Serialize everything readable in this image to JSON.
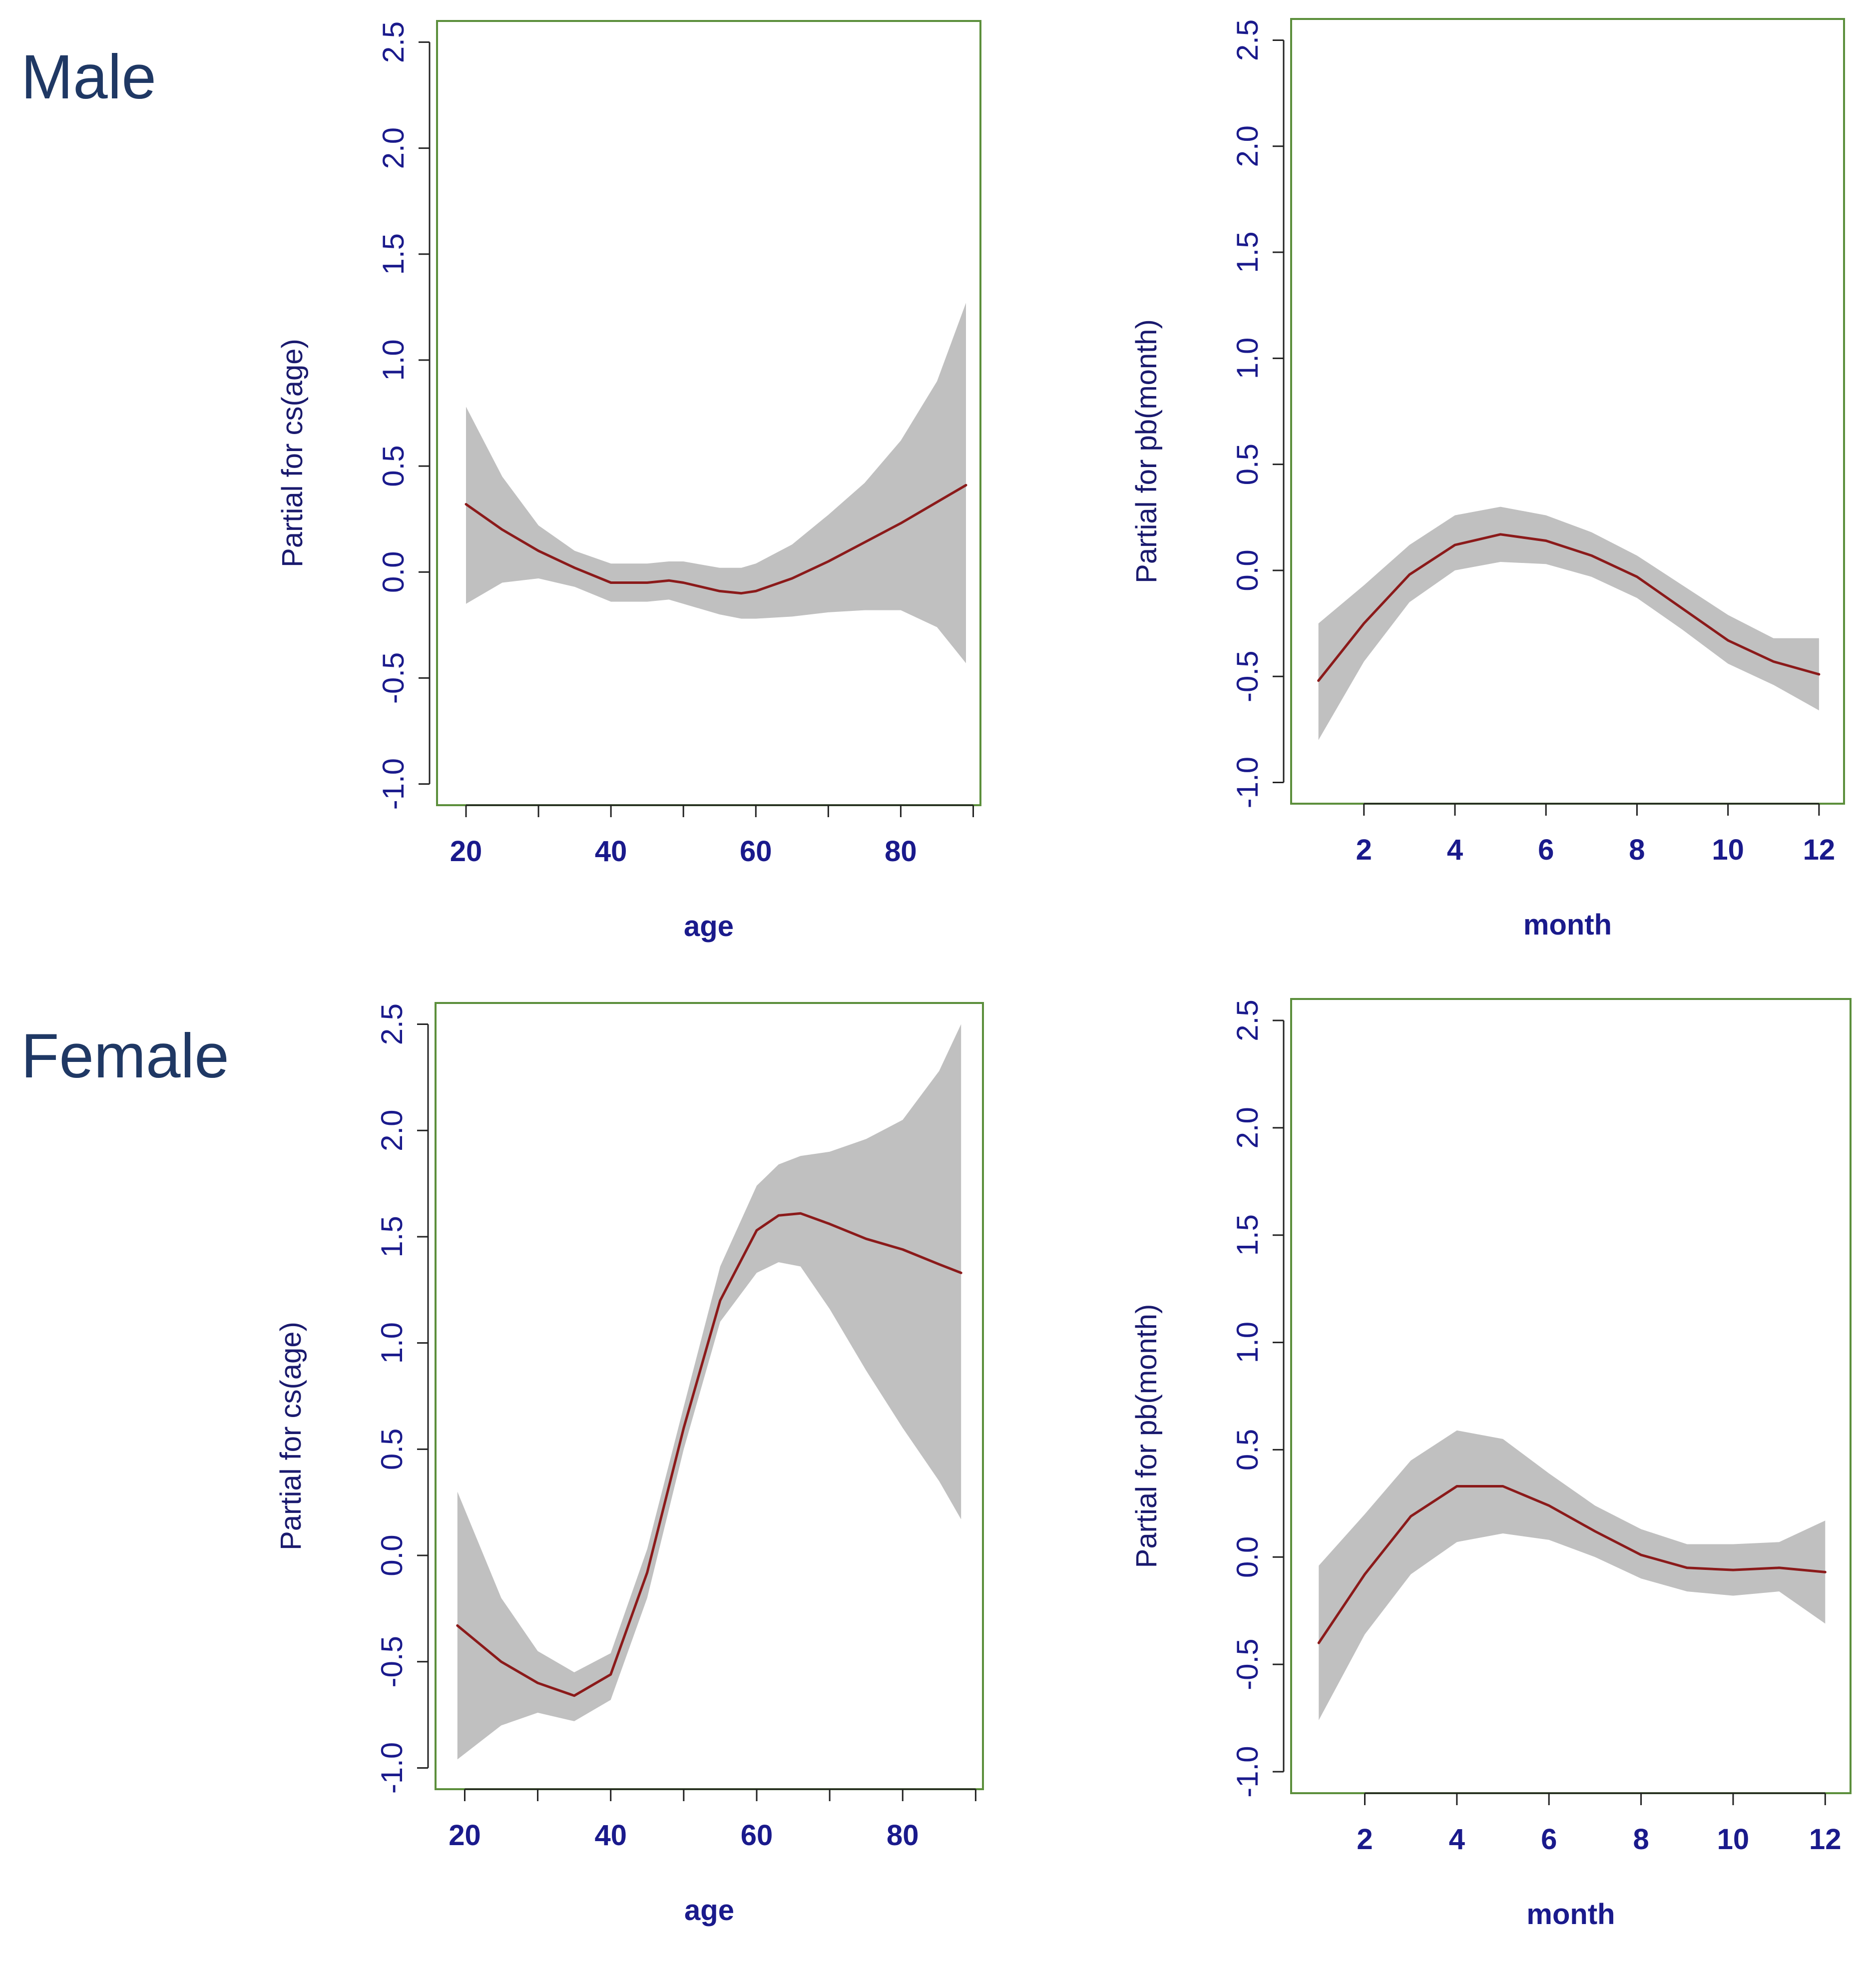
{
  "groups": {
    "male": "Male",
    "female": "Female"
  },
  "colors": {
    "frame": "#5c8f3c",
    "band": "#c0c0c0",
    "line": "#8b1a1a",
    "tick_text": "#1a1a8c",
    "axis_title_x": "#1a1a8c",
    "axis_title_y": "#1a1a6e",
    "group_label": "#1f3864"
  },
  "chart_data": [
    {
      "id": "male-age",
      "type": "line",
      "group": "Male",
      "xlabel": "age",
      "ylabel": "Partial for cs(age)",
      "xlim": [
        16,
        91
      ],
      "ylim": [
        -1.1,
        2.6
      ],
      "xticks": [
        20,
        30,
        40,
        50,
        60,
        70,
        80,
        90
      ],
      "xtick_labels": [
        "20",
        "",
        "40",
        "",
        "60",
        "",
        "80",
        ""
      ],
      "yticks": [
        -1.0,
        -0.5,
        0.0,
        0.5,
        1.0,
        1.5,
        2.0,
        2.5
      ],
      "ytick_labels": [
        "-1.0",
        "-0.5",
        "0.0",
        "0.5",
        "1.0",
        "1.5",
        "2.0",
        "2.5"
      ],
      "series": [
        {
          "name": "fit",
          "x": [
            20,
            25,
            30,
            35,
            40,
            45,
            48,
            50,
            55,
            58,
            60,
            65,
            70,
            75,
            80,
            85,
            89
          ],
          "y": [
            0.32,
            0.2,
            0.1,
            0.02,
            -0.05,
            -0.05,
            -0.04,
            -0.05,
            -0.09,
            -0.1,
            -0.09,
            -0.03,
            0.05,
            0.14,
            0.23,
            0.33,
            0.41
          ]
        }
      ],
      "band": {
        "x": [
          20,
          25,
          30,
          35,
          40,
          45,
          48,
          50,
          55,
          58,
          60,
          65,
          70,
          75,
          80,
          85,
          89
        ],
        "upper": [
          0.78,
          0.45,
          0.22,
          0.1,
          0.04,
          0.04,
          0.05,
          0.05,
          0.02,
          0.02,
          0.04,
          0.13,
          0.27,
          0.42,
          0.62,
          0.9,
          1.27
        ],
        "lower": [
          -0.15,
          -0.05,
          -0.03,
          -0.07,
          -0.14,
          -0.14,
          -0.13,
          -0.15,
          -0.2,
          -0.22,
          -0.22,
          -0.21,
          -0.19,
          -0.18,
          -0.18,
          -0.26,
          -0.43
        ]
      }
    },
    {
      "id": "male-month",
      "type": "line",
      "group": "Male",
      "xlabel": "month",
      "ylabel": "Partial for pb(month)",
      "xlim": [
        0.4,
        12.55
      ],
      "ylim": [
        -1.1,
        2.6
      ],
      "xticks": [
        2,
        4,
        6,
        8,
        10,
        12
      ],
      "xtick_labels": [
        "2",
        "4",
        "6",
        "8",
        "10",
        "12"
      ],
      "yticks": [
        -1.0,
        -0.5,
        0.0,
        0.5,
        1.0,
        1.5,
        2.0,
        2.5
      ],
      "ytick_labels": [
        "-1.0",
        "-0.5",
        "0.0",
        "0.5",
        "1.0",
        "1.5",
        "2.0",
        "2.5"
      ],
      "series": [
        {
          "name": "fit",
          "x": [
            1,
            2,
            3,
            4,
            5,
            6,
            7,
            8,
            9,
            10,
            11,
            12
          ],
          "y": [
            -0.52,
            -0.25,
            -0.02,
            0.12,
            0.17,
            0.14,
            0.07,
            -0.03,
            -0.18,
            -0.33,
            -0.43,
            -0.49
          ]
        }
      ],
      "band": {
        "x": [
          1,
          2,
          3,
          4,
          5,
          6,
          7,
          8,
          9,
          10,
          11,
          12
        ],
        "upper": [
          -0.25,
          -0.07,
          0.12,
          0.26,
          0.3,
          0.26,
          0.18,
          0.07,
          -0.07,
          -0.21,
          -0.32,
          -0.32
        ],
        "lower": [
          -0.8,
          -0.43,
          -0.15,
          0.0,
          0.04,
          0.03,
          -0.03,
          -0.13,
          -0.28,
          -0.44,
          -0.54,
          -0.66
        ]
      }
    },
    {
      "id": "female-age",
      "type": "line",
      "group": "Female",
      "xlabel": "age",
      "ylabel": "Partial for cs(age)",
      "xlim": [
        16,
        91
      ],
      "ylim": [
        -1.1,
        2.6
      ],
      "xticks": [
        20,
        30,
        40,
        50,
        60,
        70,
        80,
        90
      ],
      "xtick_labels": [
        "20",
        "",
        "40",
        "",
        "60",
        "",
        "80",
        ""
      ],
      "yticks": [
        -1.0,
        -0.5,
        0.0,
        0.5,
        1.0,
        1.5,
        2.0,
        2.5
      ],
      "ytick_labels": [
        "-1.0",
        "-0.5",
        "0.0",
        "0.5",
        "1.0",
        "1.5",
        "2.0",
        "2.5"
      ],
      "series": [
        {
          "name": "fit",
          "x": [
            19,
            25,
            30,
            35,
            40,
            45,
            50,
            55,
            60,
            63,
            66,
            70,
            75,
            80,
            85,
            88
          ],
          "y": [
            -0.33,
            -0.5,
            -0.6,
            -0.66,
            -0.56,
            -0.08,
            0.6,
            1.2,
            1.53,
            1.6,
            1.61,
            1.56,
            1.49,
            1.44,
            1.37,
            1.33
          ]
        }
      ],
      "band": {
        "x": [
          19,
          25,
          30,
          35,
          40,
          45,
          50,
          55,
          60,
          63,
          66,
          70,
          75,
          80,
          85,
          88
        ],
        "upper": [
          0.3,
          -0.2,
          -0.45,
          -0.55,
          -0.46,
          0.03,
          0.7,
          1.36,
          1.74,
          1.84,
          1.88,
          1.9,
          1.96,
          2.05,
          2.28,
          2.5
        ],
        "lower": [
          -0.96,
          -0.8,
          -0.74,
          -0.78,
          -0.68,
          -0.2,
          0.5,
          1.1,
          1.33,
          1.38,
          1.36,
          1.16,
          0.87,
          0.6,
          0.35,
          0.17
        ]
      }
    },
    {
      "id": "female-month",
      "type": "line",
      "group": "Female",
      "xlabel": "month",
      "ylabel": "Partial for pb(month)",
      "xlim": [
        0.4,
        12.55
      ],
      "ylim": [
        -1.1,
        2.6
      ],
      "xticks": [
        2,
        4,
        6,
        8,
        10,
        12
      ],
      "xtick_labels": [
        "2",
        "4",
        "6",
        "8",
        "10",
        "12"
      ],
      "yticks": [
        -1.0,
        -0.5,
        0.0,
        0.5,
        1.0,
        1.5,
        2.0,
        2.5
      ],
      "ytick_labels": [
        "-1.0",
        "-0.5",
        "0.0",
        "0.5",
        "1.0",
        "1.5",
        "2.0",
        "2.5"
      ],
      "series": [
        {
          "name": "fit",
          "x": [
            1,
            2,
            3,
            4,
            5,
            6,
            7,
            8,
            9,
            10,
            11,
            12
          ],
          "y": [
            -0.4,
            -0.08,
            0.19,
            0.33,
            0.33,
            0.24,
            0.12,
            0.01,
            -0.05,
            -0.06,
            -0.05,
            -0.07
          ]
        }
      ],
      "band": {
        "x": [
          1,
          2,
          3,
          4,
          5,
          6,
          7,
          8,
          9,
          10,
          11,
          12
        ],
        "upper": [
          -0.04,
          0.2,
          0.45,
          0.59,
          0.55,
          0.39,
          0.24,
          0.13,
          0.06,
          0.06,
          0.07,
          0.17
        ],
        "lower": [
          -0.76,
          -0.36,
          -0.08,
          0.07,
          0.11,
          0.08,
          0.0,
          -0.1,
          -0.16,
          -0.18,
          -0.16,
          -0.31
        ]
      }
    }
  ]
}
